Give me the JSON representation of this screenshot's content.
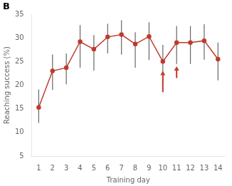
{
  "chart_data": {
    "type": "line",
    "x": [
      1,
      2,
      3,
      4,
      5,
      6,
      7,
      8,
      9,
      10,
      11,
      12,
      13,
      14
    ],
    "values": [
      15.3,
      23.0,
      23.7,
      29.2,
      27.6,
      30.2,
      30.7,
      28.7,
      30.3,
      25.0,
      29.0,
      29.0,
      29.4,
      25.5
    ],
    "color": "#c0392b",
    "marker": "circle",
    "error_bars": {
      "low": [
        3.3,
        4.0,
        3.5,
        5.5,
        4.5,
        3.5,
        4.2,
        5.0,
        5.0,
        4.5,
        4.5,
        4.5,
        4.0,
        4.5
      ],
      "high": [
        3.8,
        3.5,
        3.0,
        3.5,
        3.0,
        2.8,
        3.0,
        2.5,
        3.0,
        3.5,
        3.5,
        3.5,
        3.5,
        3.5
      ],
      "color": "#666666"
    },
    "arrows": [
      {
        "x": 10,
        "y_start": 18.5,
        "y_end": 23.0
      },
      {
        "x": 11,
        "y_start": 21.5,
        "y_end": 24.0
      }
    ],
    "xlabel": "Training day",
    "ylabel": "Reaching success (%)",
    "panel_label": "B",
    "xlim": [
      0.5,
      14.5
    ],
    "xticks": [
      1,
      2,
      3,
      4,
      5,
      6,
      7,
      8,
      9,
      10,
      11,
      12,
      13,
      14
    ],
    "ylim": [
      5,
      35
    ],
    "yticks": [
      5,
      10,
      15,
      20,
      25,
      30,
      35
    ],
    "grid": false
  }
}
